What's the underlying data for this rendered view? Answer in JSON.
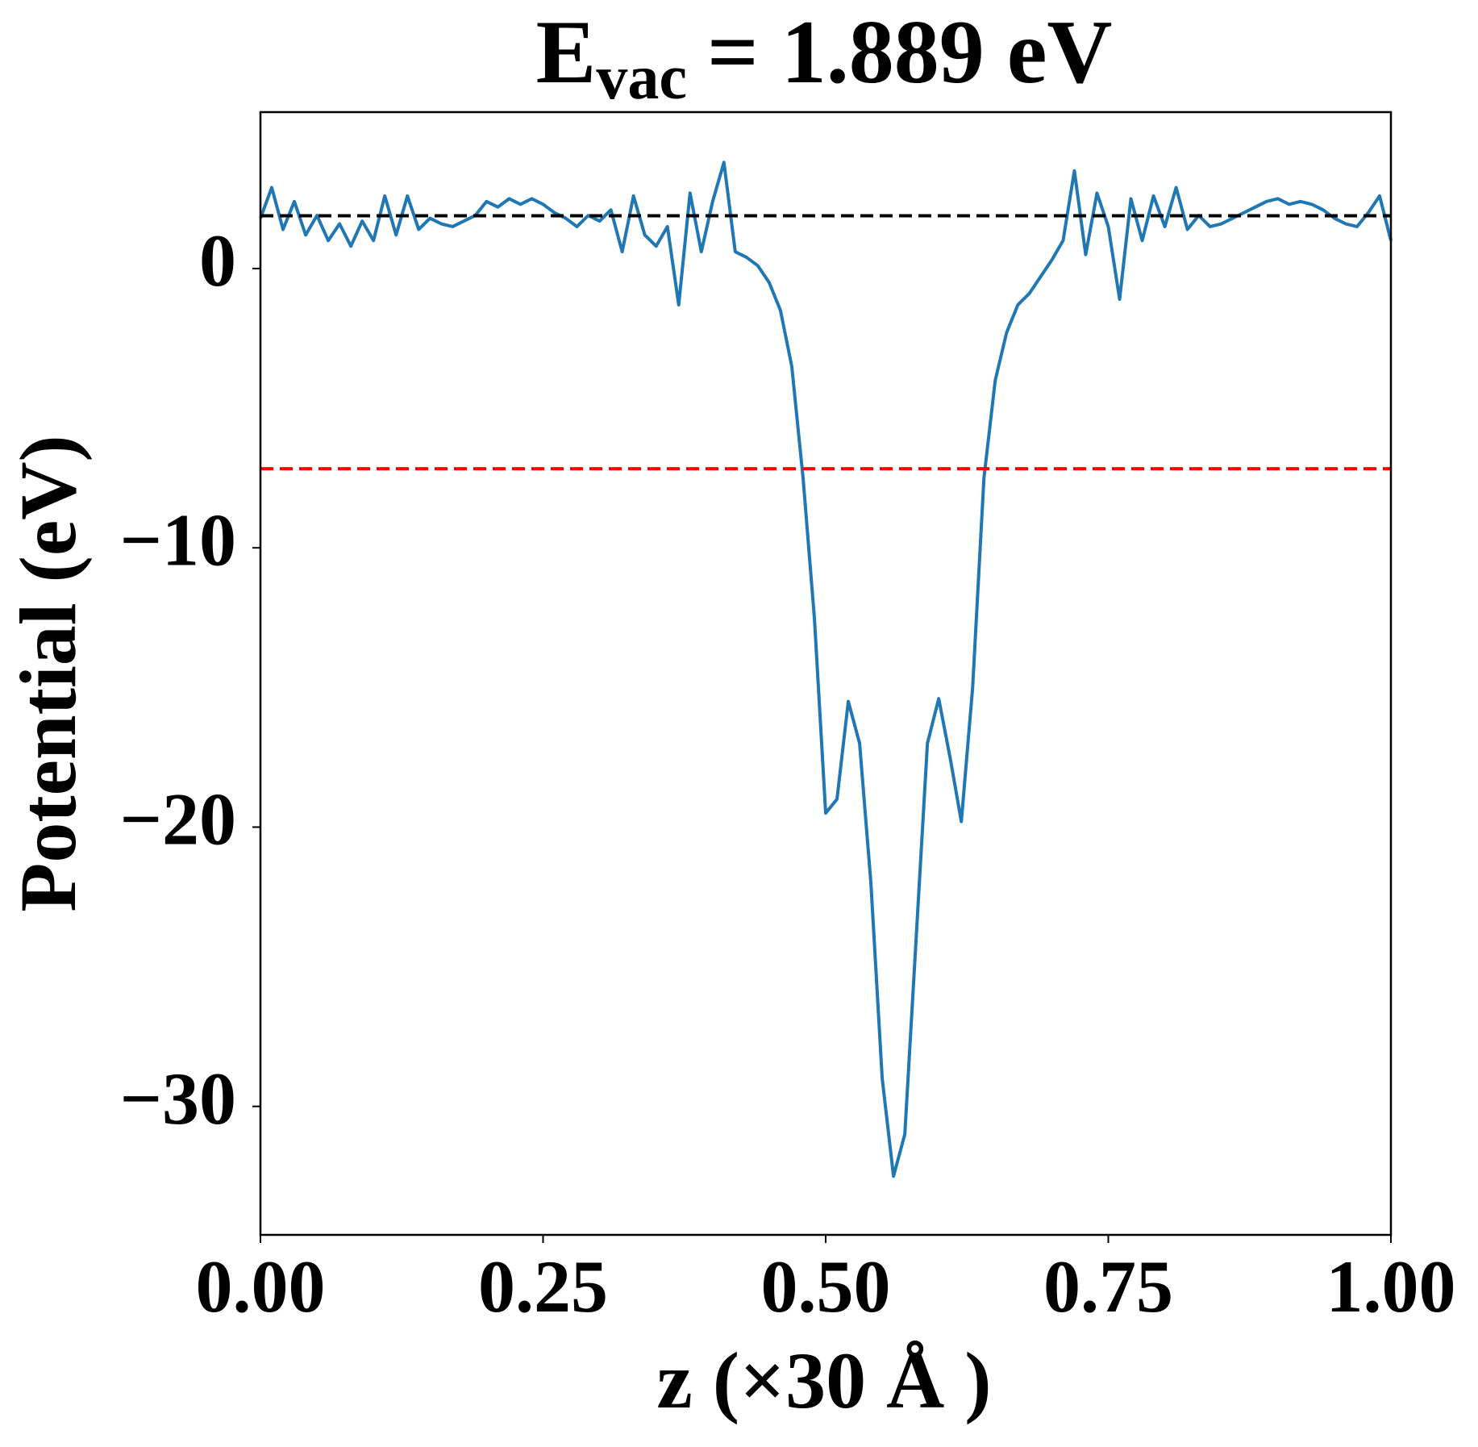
{
  "chart_data": {
    "type": "line",
    "title_main": "E",
    "title_sub": "vac",
    "title_rest": "= 1.889 eV",
    "xlabel": "z (×30 Å )",
    "ylabel": "Potential (eV)",
    "x": [
      0,
      0.01,
      0.02,
      0.03,
      0.04,
      0.05,
      0.06,
      0.07,
      0.08,
      0.09,
      0.1,
      0.11,
      0.12,
      0.13,
      0.14,
      0.15,
      0.16,
      0.17,
      0.18,
      0.19,
      0.2,
      0.21,
      0.22,
      0.23,
      0.24,
      0.25,
      0.26,
      0.27,
      0.28,
      0.29,
      0.3,
      0.31,
      0.32,
      0.33,
      0.34,
      0.35,
      0.36,
      0.37,
      0.38,
      0.39,
      0.4,
      0.41,
      0.42,
      0.43,
      0.44,
      0.45,
      0.46,
      0.47,
      0.48,
      0.49,
      0.5,
      0.51,
      0.52,
      0.53,
      0.54,
      0.55,
      0.56,
      0.57,
      0.58,
      0.59,
      0.6,
      0.61,
      0.62,
      0.63,
      0.64,
      0.65,
      0.66,
      0.67,
      0.68,
      0.69,
      0.7,
      0.71,
      0.72,
      0.73,
      0.74,
      0.75,
      0.76,
      0.77,
      0.78,
      0.79,
      0.8,
      0.81,
      0.82,
      0.83,
      0.84,
      0.85,
      0.86,
      0.87,
      0.88,
      0.89,
      0.9,
      0.91,
      0.92,
      0.93,
      0.94,
      0.95,
      0.96,
      0.97,
      0.98,
      0.99,
      1
    ],
    "values": [
      1.8,
      2.9,
      1.4,
      2.4,
      1.2,
      1.9,
      1.0,
      1.6,
      0.8,
      1.7,
      1.0,
      2.6,
      1.2,
      2.6,
      1.4,
      1.8,
      1.6,
      1.5,
      1.7,
      1.9,
      2.4,
      2.2,
      2.5,
      2.3,
      2.5,
      2.3,
      2.0,
      1.8,
      1.5,
      1.9,
      1.7,
      2.1,
      0.6,
      2.6,
      1.2,
      0.8,
      1.5,
      -1.3,
      2.7,
      0.6,
      2.4,
      3.8,
      0.6,
      0.4,
      0.1,
      -0.5,
      -1.5,
      -3.5,
      -7.5,
      -12.5,
      -19.5,
      -19.0,
      -15.5,
      -17,
      -22,
      -29,
      -32.5,
      -31,
      -24,
      -17,
      -15.4,
      -17.5,
      -19.8,
      -15,
      -7.5,
      -4,
      -2.3,
      -1.3,
      -0.9,
      -0.3,
      0.3,
      1.0,
      3.5,
      0.5,
      2.7,
      1.5,
      -1.1,
      2.5,
      1.0,
      2.6,
      1.5,
      2.9,
      1.4,
      1.9,
      1.5,
      1.6,
      1.8,
      2.0,
      2.2,
      2.4,
      2.5,
      2.3,
      2.4,
      2.3,
      2.1,
      1.8,
      1.6,
      1.5,
      2.0,
      2.6,
      1.0
    ],
    "color": "#1f77b4",
    "hlines": [
      {
        "value": 1.889,
        "color": "#000000"
      },
      {
        "value": -7.17,
        "color": "#ff0000"
      }
    ],
    "xlim": [
      0,
      1
    ],
    "xticks": [
      {
        "value": 0,
        "label": "0.00"
      },
      {
        "value": 0.25,
        "label": "0.25"
      },
      {
        "value": 0.5,
        "label": "0.50"
      },
      {
        "value": 0.75,
        "label": "0.75"
      },
      {
        "value": 1,
        "label": "1.00"
      }
    ],
    "ylim": [
      -34.6,
      5.6
    ],
    "yticks": [
      0,
      {
        "value": -10,
        "label": "−10"
      },
      {
        "value": -20,
        "label": "−20"
      },
      {
        "value": -30,
        "label": "−30"
      }
    ]
  }
}
